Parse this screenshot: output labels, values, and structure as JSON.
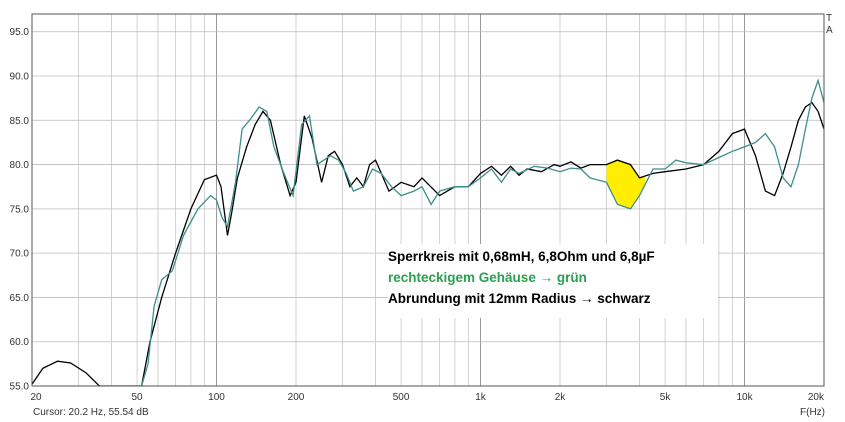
{
  "chart_data": {
    "type": "line",
    "xlabel": "F(Hz)",
    "x_scale": "log",
    "xlim": [
      20,
      20000
    ],
    "ylim": [
      55,
      97
    ],
    "grid": true,
    "y_ticks": [
      "55.0",
      "60.0",
      "65.0",
      "70.0",
      "75.0",
      "80.0",
      "85.0",
      "90.0",
      "95.0"
    ],
    "x_ticks": [
      {
        "value": 20,
        "label": "20"
      },
      {
        "value": 50,
        "label": "50"
      },
      {
        "value": 100,
        "label": "100"
      },
      {
        "value": 200,
        "label": "200"
      },
      {
        "value": 500,
        "label": "500"
      },
      {
        "value": 1000,
        "label": "1k"
      },
      {
        "value": 2000,
        "label": "2k"
      },
      {
        "value": 5000,
        "label": "5k"
      },
      {
        "value": 10000,
        "label": "10k"
      },
      {
        "value": 20000,
        "label": "20k"
      }
    ],
    "corner_labels": [
      "T",
      "A"
    ],
    "annotation": {
      "line1": "Sperrkreis mit 0,68mH, 6,8Ohm und 6,8µF",
      "line2": "rechteckigem Gehäuse → grün",
      "line3": "Abrundung mit 12mm Radius → schwarz"
    },
    "cursor_text": "Cursor: 20.2 Hz, 55.54 dB",
    "highlight": {
      "x_start": 3000,
      "x_end": 4200,
      "color": "#ffee00"
    },
    "series": [
      {
        "color": "#000000",
        "points": [
          [
            20,
            55.2
          ],
          [
            22,
            57
          ],
          [
            25,
            57.8
          ],
          [
            28,
            57.6
          ],
          [
            32,
            56.5
          ],
          [
            36,
            55
          ],
          [
            52,
            55
          ],
          [
            56,
            60
          ],
          [
            62,
            65
          ],
          [
            70,
            70
          ],
          [
            80,
            75
          ],
          [
            90,
            78.3
          ],
          [
            100,
            78.8
          ],
          [
            104,
            77.5
          ],
          [
            110,
            72
          ],
          [
            114,
            74.5
          ],
          [
            120,
            78.5
          ],
          [
            130,
            82
          ],
          [
            140,
            84.5
          ],
          [
            150,
            86
          ],
          [
            160,
            85
          ],
          [
            175,
            80
          ],
          [
            190,
            76.5
          ],
          [
            200,
            78
          ],
          [
            215,
            85.5
          ],
          [
            230,
            83
          ],
          [
            250,
            78
          ],
          [
            265,
            81
          ],
          [
            280,
            81.5
          ],
          [
            300,
            80
          ],
          [
            320,
            77.5
          ],
          [
            340,
            78.5
          ],
          [
            360,
            77.5
          ],
          [
            380,
            80
          ],
          [
            400,
            80.5
          ],
          [
            450,
            77
          ],
          [
            500,
            78
          ],
          [
            560,
            77.5
          ],
          [
            600,
            78.5
          ],
          [
            700,
            76.5
          ],
          [
            800,
            77.5
          ],
          [
            900,
            77.5
          ],
          [
            1000,
            79
          ],
          [
            1100,
            79.8
          ],
          [
            1200,
            78.8
          ],
          [
            1300,
            79.8
          ],
          [
            1400,
            78.8
          ],
          [
            1500,
            79.5
          ],
          [
            1700,
            79.2
          ],
          [
            1900,
            80
          ],
          [
            2000,
            79.8
          ],
          [
            2200,
            80.3
          ],
          [
            2400,
            79.6
          ],
          [
            2600,
            80
          ],
          [
            2800,
            80
          ],
          [
            3000,
            80
          ],
          [
            3300,
            80.5
          ],
          [
            3700,
            80
          ],
          [
            4000,
            78.5
          ],
          [
            4500,
            79
          ],
          [
            5000,
            79.2
          ],
          [
            6000,
            79.5
          ],
          [
            7000,
            80
          ],
          [
            8000,
            81.5
          ],
          [
            9000,
            83.5
          ],
          [
            10000,
            84
          ],
          [
            11000,
            81
          ],
          [
            12000,
            77
          ],
          [
            13000,
            76.5
          ],
          [
            14000,
            79
          ],
          [
            15000,
            82
          ],
          [
            16000,
            85
          ],
          [
            17000,
            86.5
          ],
          [
            18000,
            87
          ],
          [
            19000,
            86
          ],
          [
            20000,
            84
          ]
        ]
      },
      {
        "color": "#3d8f8a",
        "points": [
          [
            52,
            55
          ],
          [
            55,
            57.5
          ],
          [
            58,
            64
          ],
          [
            62,
            67
          ],
          [
            68,
            68
          ],
          [
            75,
            72
          ],
          [
            85,
            75
          ],
          [
            95,
            76.5
          ],
          [
            100,
            76
          ],
          [
            105,
            74
          ],
          [
            110,
            73
          ],
          [
            118,
            78
          ],
          [
            125,
            84
          ],
          [
            135,
            85.2
          ],
          [
            145,
            86.5
          ],
          [
            155,
            86
          ],
          [
            165,
            82
          ],
          [
            180,
            79
          ],
          [
            195,
            76.5
          ],
          [
            210,
            84.5
          ],
          [
            225,
            85.5
          ],
          [
            240,
            80
          ],
          [
            255,
            80.5
          ],
          [
            270,
            81
          ],
          [
            290,
            80.5
          ],
          [
            310,
            79
          ],
          [
            330,
            77
          ],
          [
            360,
            77.5
          ],
          [
            390,
            79.5
          ],
          [
            420,
            79
          ],
          [
            460,
            77.5
          ],
          [
            500,
            76.5
          ],
          [
            560,
            77
          ],
          [
            600,
            77.5
          ],
          [
            650,
            75.5
          ],
          [
            700,
            77
          ],
          [
            800,
            77.5
          ],
          [
            900,
            77.5
          ],
          [
            1000,
            78.5
          ],
          [
            1100,
            79.5
          ],
          [
            1200,
            78
          ],
          [
            1300,
            79.5
          ],
          [
            1400,
            79
          ],
          [
            1600,
            79.8
          ],
          [
            1800,
            79.6
          ],
          [
            2000,
            79.2
          ],
          [
            2200,
            79.6
          ],
          [
            2400,
            79.5
          ],
          [
            2600,
            78.5
          ],
          [
            3000,
            78
          ],
          [
            3300,
            75.5
          ],
          [
            3700,
            75
          ],
          [
            4000,
            76.5
          ],
          [
            4500,
            79.5
          ],
          [
            5000,
            79.5
          ],
          [
            5500,
            80.5
          ],
          [
            6000,
            80.2
          ],
          [
            7000,
            80
          ],
          [
            8000,
            80.8
          ],
          [
            9000,
            81.5
          ],
          [
            10000,
            82
          ],
          [
            11000,
            82.5
          ],
          [
            12000,
            83.5
          ],
          [
            13000,
            82
          ],
          [
            14000,
            78.5
          ],
          [
            15000,
            77.5
          ],
          [
            16000,
            80
          ],
          [
            17000,
            84
          ],
          [
            18000,
            87.5
          ],
          [
            19000,
            89.5
          ],
          [
            20000,
            87
          ]
        ]
      }
    ]
  }
}
